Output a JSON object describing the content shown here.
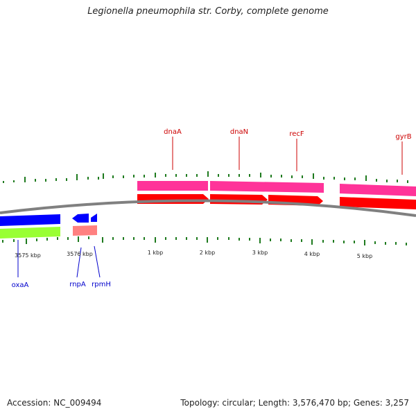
{
  "title": "Legionella pneumophila str. Corby, complete genome",
  "footer": {
    "accession": "Accession: NC_009494",
    "summary": "Topology: circular; Length: 3,576,470 bp; Genes: 3,257"
  },
  "ticks": [
    "3575 kbp",
    "3576 kbp",
    "1 kbp",
    "2 kbp",
    "3 kbp",
    "4 kbp",
    "5 kbp"
  ],
  "genes_top": [
    "dnaA",
    "dnaN",
    "recF",
    "gyrB"
  ],
  "genes_bottom": [
    "oxaA",
    "rnpA",
    "rpmH"
  ],
  "colors": {
    "forward_cds": "#ff0000",
    "forward_gene": "#ff3399",
    "reverse_cds": "#0000ff",
    "reverse_gene_green": "#99ff33",
    "reverse_gene_pink": "#ff8080",
    "tick": "#1e7a1e",
    "label_top": "#cc0000",
    "label_bottom": "#0000cc",
    "backbone": "#808080"
  }
}
